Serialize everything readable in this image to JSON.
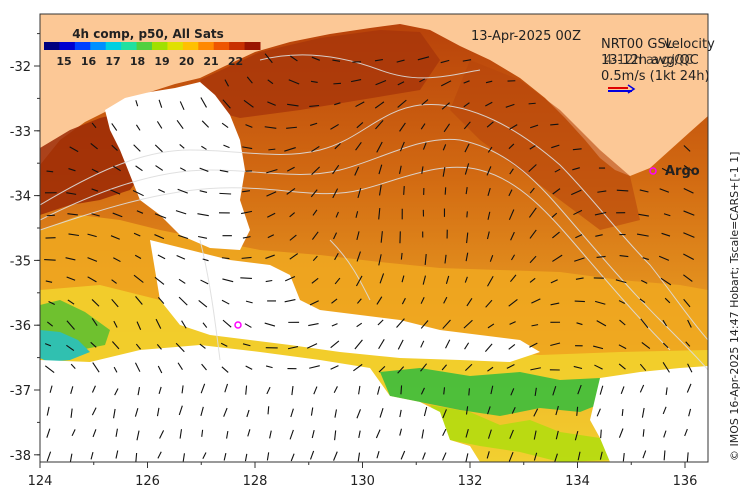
{
  "header": {
    "composite_label": "4h comp, p50, All Sats",
    "date_label": "13-Apr-2025 00Z",
    "velocity_lines": [
      "NRT00 GSL",
      "velocity",
      "13-12h avg/QC",
      "4-12h avg/QC",
      "0.5m/s (1kt 24h)"
    ]
  },
  "colorbar": {
    "ticks": [
      "15",
      "16",
      "17",
      "18",
      "19",
      "20",
      "21",
      "22"
    ],
    "colors": [
      "#00007f",
      "#0000d0",
      "#0040ff",
      "#0090ff",
      "#00d0e0",
      "#20e0a0",
      "#50d040",
      "#a0e000",
      "#e0e000",
      "#ffc000",
      "#ff8800",
      "#ee5500",
      "#c83000",
      "#9a1500"
    ]
  },
  "axes": {
    "x_ticks": [
      "124",
      "126",
      "128",
      "130",
      "132",
      "134",
      "136"
    ],
    "y_ticks": [
      "-32",
      "-33",
      "-34",
      "-35",
      "-36",
      "-37",
      "-38"
    ]
  },
  "markers": {
    "argo_label": "Argo"
  },
  "credit": "© IMOS 16-Apr-2025 14:47 Hobart; Tscale=CARS+[-1 1]",
  "colors": {
    "land": "#fcc896",
    "ocean_warm": "#cc5a10",
    "ocean_hot": "#a02a05",
    "ocean_mid": "#e08a20",
    "ocean_yellow": "#f0c020",
    "ocean_green": "#40c040",
    "argo_marker": "#ff00ff"
  }
}
